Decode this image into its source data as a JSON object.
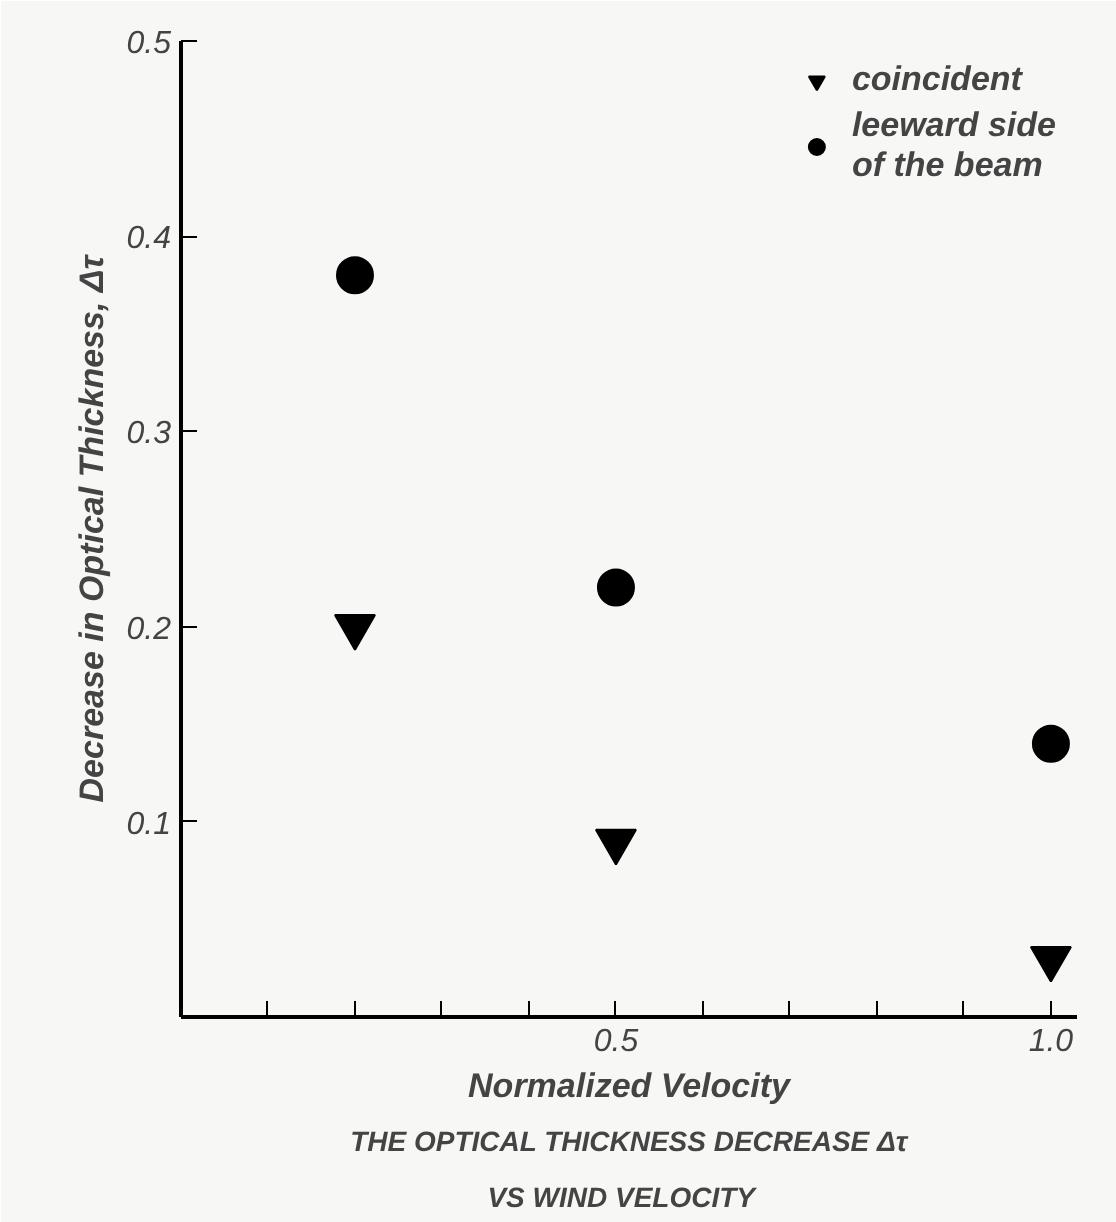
{
  "chart_data": {
    "type": "scatter",
    "title": "THE OPTICAL THICKNESS DECREASE Δτ\nVS  WIND  VELOCITY",
    "xlabel": "Normalized Velocity",
    "ylabel": "Decrease in Optical Thickness, Δτ",
    "x": [
      0.2,
      0.5,
      1.0
    ],
    "series": [
      {
        "name": "coincident",
        "color": "#000000",
        "marker": "triangle",
        "values": [
          0.2,
          0.09,
          0.03
        ]
      },
      {
        "name": "leeward side\nof the beam",
        "color": "#000000",
        "marker": "circle",
        "values": [
          0.38,
          0.22,
          0.14
        ]
      }
    ],
    "xlim": [
      0,
      1.03
    ],
    "ylim": [
      0,
      0.5
    ],
    "xticks": [
      {
        "value": 0.1,
        "label": null
      },
      {
        "value": 0.2,
        "label": null
      },
      {
        "value": 0.3,
        "label": null
      },
      {
        "value": 0.4,
        "label": null
      },
      0.5,
      {
        "value": 0.6,
        "label": null
      },
      {
        "value": 0.7,
        "label": null
      },
      {
        "value": 0.8,
        "label": null
      },
      {
        "value": 0.9,
        "label": null
      },
      {
        "value": 1.0,
        "label": "1.0"
      }
    ],
    "yticks": [
      0.1,
      0.2,
      0.3,
      0.4,
      0.5
    ],
    "grid": false,
    "legend": "top right"
  }
}
